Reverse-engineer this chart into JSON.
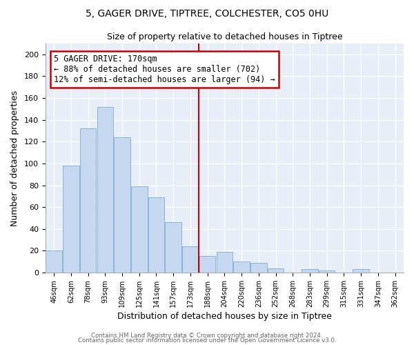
{
  "title": "5, GAGER DRIVE, TIPTREE, COLCHESTER, CO5 0HU",
  "subtitle": "Size of property relative to detached houses in Tiptree",
  "xlabel": "Distribution of detached houses by size in Tiptree",
  "ylabel": "Number of detached properties",
  "bar_labels": [
    "46sqm",
    "62sqm",
    "78sqm",
    "93sqm",
    "109sqm",
    "125sqm",
    "141sqm",
    "157sqm",
    "173sqm",
    "188sqm",
    "204sqm",
    "220sqm",
    "236sqm",
    "252sqm",
    "268sqm",
    "283sqm",
    "299sqm",
    "315sqm",
    "331sqm",
    "347sqm",
    "362sqm"
  ],
  "bar_values": [
    20,
    98,
    132,
    152,
    124,
    79,
    69,
    46,
    24,
    15,
    19,
    10,
    9,
    4,
    0,
    3,
    2,
    0,
    3,
    0,
    0
  ],
  "bar_color": "#c5d8f0",
  "bar_edge_color": "#7badd4",
  "vline_color": "#cc0000",
  "annotation_text": "5 GAGER DRIVE: 170sqm\n← 88% of detached houses are smaller (702)\n12% of semi-detached houses are larger (94) →",
  "annotation_box_color": "#ffffff",
  "annotation_box_edge": "#cc0000",
  "ylim": [
    0,
    210
  ],
  "yticks": [
    0,
    20,
    40,
    60,
    80,
    100,
    120,
    140,
    160,
    180,
    200
  ],
  "footer1": "Contains HM Land Registry data © Crown copyright and database right 2024.",
  "footer2": "Contains public sector information licensed under the Open Government Licence v3.0.",
  "bg_color": "#ffffff",
  "plot_bg_color": "#e8eef8"
}
